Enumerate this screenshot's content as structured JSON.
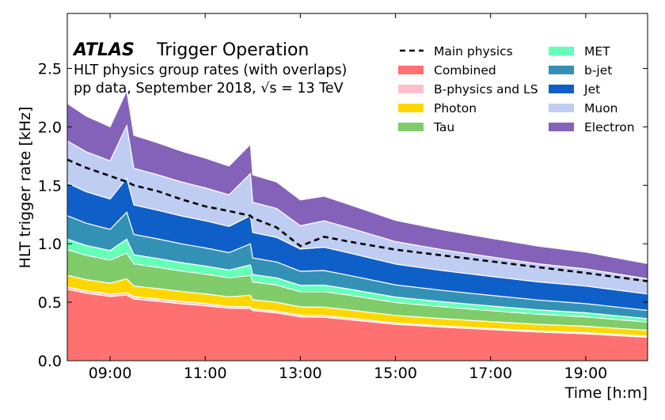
{
  "chart_data": {
    "type": "area",
    "stacked": true,
    "title": "ATLAS",
    "subtitle_main": "Trigger Operation",
    "subtitle_lines": [
      "HLT physics group rates (with overlaps)",
      "pp data, September 2018, √s = 13 TeV"
    ],
    "xlabel": "Time [h:m]",
    "ylabel": "HLT trigger rate [kHz]",
    "xlim": [
      8.1,
      20.3
    ],
    "ylim": [
      0,
      2.97
    ],
    "x_ticks": [
      9,
      11,
      13,
      15,
      17,
      19
    ],
    "x_tick_labels": [
      "09:00",
      "11:00",
      "13:00",
      "15:00",
      "17:00",
      "19:00"
    ],
    "y_ticks": [
      0,
      0.5,
      1.0,
      1.5,
      2.0,
      2.5
    ],
    "y_tick_labels": [
      "0.0",
      "0.5",
      "1.0",
      "1.5",
      "2.0",
      "2.5"
    ],
    "grid": false,
    "legend_position": "top-right",
    "x": [
      8.1,
      8.5,
      9.0,
      9.35,
      9.5,
      10,
      10.5,
      11,
      11.5,
      11.95,
      12,
      12.5,
      13.0,
      13.5,
      14,
      15,
      16,
      17,
      18,
      19,
      20.3
    ],
    "series": [
      {
        "name": "Combined",
        "color": "#ff7070",
        "values": [
          0.61,
          0.577,
          0.55,
          0.56,
          0.528,
          0.508,
          0.487,
          0.469,
          0.45,
          0.445,
          0.428,
          0.409,
          0.375,
          0.372,
          0.352,
          0.311,
          0.286,
          0.266,
          0.245,
          0.23,
          0.2
        ]
      },
      {
        "name": "B-physics and LS",
        "color": "#ffc0cb",
        "values": [
          0.02,
          0.02,
          0.02,
          0.02,
          0.02,
          0.02,
          0.02,
          0.02,
          0.015,
          0.015,
          0.015,
          0.015,
          0.015,
          0.015,
          0.015,
          0.012,
          0.012,
          0.01,
          0.01,
          0.01,
          0.01
        ]
      },
      {
        "name": "Photon",
        "color": "#ffd700",
        "values": [
          0.1,
          0.096,
          0.093,
          0.12,
          0.09,
          0.088,
          0.085,
          0.083,
          0.081,
          0.1,
          0.078,
          0.076,
          0.07,
          0.071,
          0.069,
          0.064,
          0.061,
          0.058,
          0.056,
          0.054,
          0.05
        ]
      },
      {
        "name": "Tau",
        "color": "#80cc6a",
        "values": [
          0.22,
          0.208,
          0.198,
          0.22,
          0.19,
          0.183,
          0.175,
          0.169,
          0.162,
          0.17,
          0.153,
          0.147,
          0.13,
          0.133,
          0.126,
          0.111,
          0.102,
          0.094,
          0.087,
          0.081,
          0.07
        ]
      },
      {
        "name": "MET",
        "color": "#66ffb8",
        "values": [
          0.09,
          0.085,
          0.081,
          0.12,
          0.078,
          0.075,
          0.072,
          0.069,
          0.067,
          0.09,
          0.063,
          0.061,
          0.055,
          0.055,
          0.052,
          0.046,
          0.043,
          0.04,
          0.037,
          0.034,
          0.03
        ]
      },
      {
        "name": "b-jet",
        "color": "#3491b6",
        "values": [
          0.2,
          0.19,
          0.181,
          0.23,
          0.174,
          0.168,
          0.161,
          0.155,
          0.149,
          0.18,
          0.142,
          0.136,
          0.12,
          0.125,
          0.118,
          0.105,
          0.097,
          0.091,
          0.084,
          0.079,
          0.07
        ]
      },
      {
        "name": "Jet",
        "color": "#0f5fc8",
        "values": [
          0.28,
          0.269,
          0.26,
          0.29,
          0.252,
          0.245,
          0.238,
          0.232,
          0.225,
          0.24,
          0.218,
          0.211,
          0.19,
          0.199,
          0.192,
          0.178,
          0.169,
          0.162,
          0.155,
          0.15,
          0.14
        ]
      },
      {
        "name": "Muon",
        "color": "#bfcdf2",
        "values": [
          0.36,
          0.342,
          0.326,
          0.45,
          0.314,
          0.303,
          0.291,
          0.281,
          0.27,
          0.36,
          0.258,
          0.247,
          0.2,
          0.227,
          0.215,
          0.192,
          0.178,
          0.167,
          0.155,
          0.147,
          0.13
        ]
      },
      {
        "name": "Electron",
        "color": "#8462ba",
        "values": [
          0.32,
          0.305,
          0.292,
          0.3,
          0.282,
          0.273,
          0.263,
          0.255,
          0.246,
          0.25,
          0.235,
          0.227,
          0.22,
          0.21,
          0.2,
          0.181,
          0.17,
          0.16,
          0.151,
          0.144,
          0.13
        ]
      }
    ],
    "line": {
      "name": "Main physics",
      "style": "dashed",
      "color": "#000000",
      "values": [
        1.72,
        1.65,
        1.58,
        1.53,
        1.5,
        1.45,
        1.38,
        1.32,
        1.28,
        1.24,
        1.22,
        1.14,
        0.98,
        1.06,
        1.02,
        0.95,
        0.9,
        0.85,
        0.8,
        0.75,
        0.68
      ]
    }
  }
}
